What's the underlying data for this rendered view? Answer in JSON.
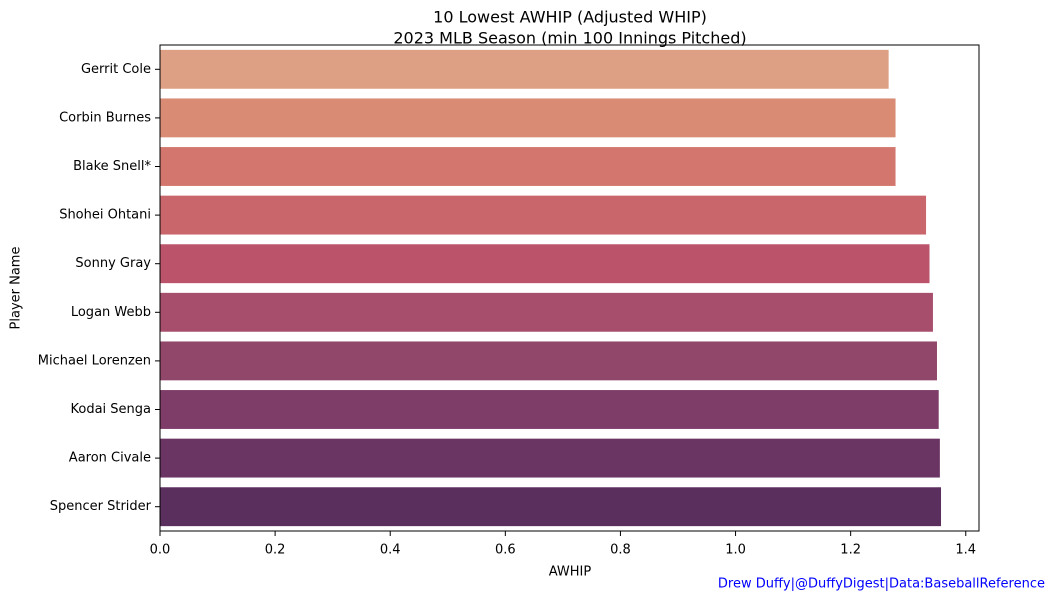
{
  "chart_data": {
    "type": "barh",
    "title": "10 Lowest AWHIP (Adjusted WHIP)",
    "subtitle": "2023 MLB Season (min 100 Innings Pitched)",
    "x_label": "AWHIP",
    "y_label": "Player Name",
    "annotation": "Drew Duffy|@DuffyDigest|Data:BaseballReference",
    "categories": [
      "Gerrit Cole",
      "Corbin Burnes",
      "Blake Snell*",
      "Shohei Ohtani",
      "Sonny Gray",
      "Logan Webb",
      "Michael Lorenzen",
      "Kodai Senga",
      "Aaron Civale",
      "Spencer Strider"
    ],
    "values": [
      1.266,
      1.278,
      1.278,
      1.331,
      1.337,
      1.343,
      1.35,
      1.353,
      1.355,
      1.357
    ],
    "colors": [
      "#dda084",
      "#d98b74",
      "#d3776e",
      "#c9666c",
      "#bb536a",
      "#a84e6d",
      "#91476a",
      "#7e3d69",
      "#6a3563",
      "#5b2f5d"
    ],
    "xlim": [
      0,
      1.423
    ],
    "xticks": [
      {
        "value": 0,
        "label": "0.0"
      },
      0.2,
      0.4,
      0.6,
      0.8,
      {
        "value": 1,
        "label": "1.0"
      },
      1.2,
      1.4
    ]
  }
}
